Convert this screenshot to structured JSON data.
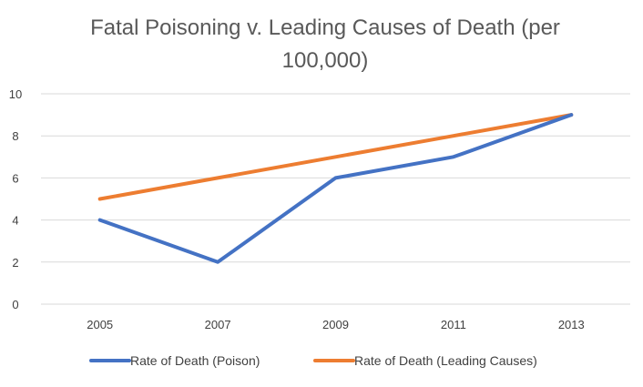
{
  "chart_data": {
    "type": "line",
    "title_line1": "Fatal Poisoning v. Leading Causes of Death (per",
    "title_line2": "100,000)",
    "xlabel": "",
    "ylabel": "",
    "categories": [
      "2005",
      "2007",
      "2009",
      "2011",
      "2013"
    ],
    "ylim": [
      0,
      10
    ],
    "yticks": [
      0,
      2,
      4,
      6,
      8,
      10
    ],
    "grid": true,
    "legend_position": "bottom",
    "series": [
      {
        "name": "Rate of Death (Poison)",
        "values": [
          4,
          2,
          6,
          7,
          9
        ],
        "color": "#4472C4"
      },
      {
        "name": "Rate of Death (Leading Causes)",
        "values": [
          5,
          6,
          7,
          8,
          9
        ],
        "color": "#ED7D31"
      }
    ]
  }
}
